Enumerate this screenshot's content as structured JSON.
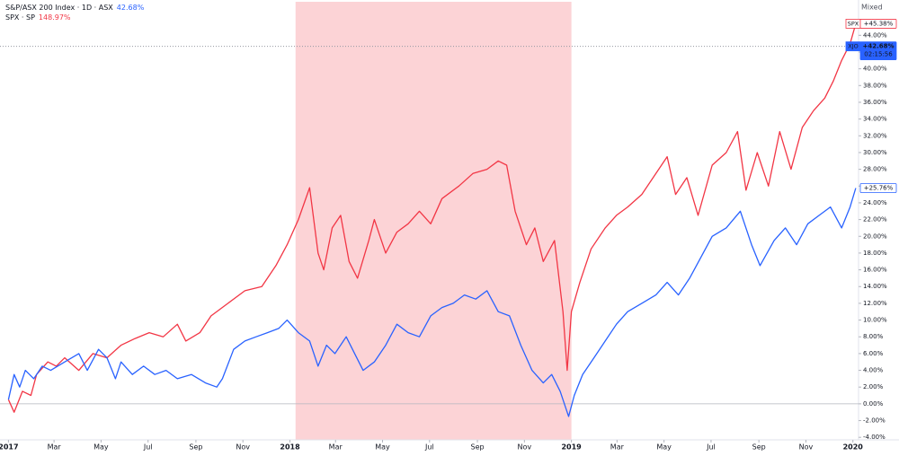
{
  "chart_data": {
    "type": "line",
    "y_axis_label": "Mixed",
    "xlim": [
      2016.97,
      2020.02
    ],
    "ylim": [
      -4.3,
      48
    ],
    "highlight": [
      2018.02,
      2019.0
    ],
    "highlight_color": "rgba(242,54,69,0.22)",
    "grid": false,
    "xticks": [
      {
        "value": 2017.0,
        "label": "2017"
      },
      {
        "value": 2017.162,
        "label": "Mar"
      },
      {
        "value": 2017.329,
        "label": "May"
      },
      {
        "value": 2017.496,
        "label": "Jul"
      },
      {
        "value": 2017.666,
        "label": "Sep"
      },
      {
        "value": 2017.833,
        "label": "Nov"
      },
      {
        "value": 2018.0,
        "label": "2018"
      },
      {
        "value": 2018.162,
        "label": "Mar"
      },
      {
        "value": 2018.329,
        "label": "May"
      },
      {
        "value": 2018.496,
        "label": "Jul"
      },
      {
        "value": 2018.666,
        "label": "Sep"
      },
      {
        "value": 2018.833,
        "label": "Nov"
      },
      {
        "value": 2019.0,
        "label": "2019"
      },
      {
        "value": 2019.162,
        "label": "Mar"
      },
      {
        "value": 2019.329,
        "label": "May"
      },
      {
        "value": 2019.496,
        "label": "Jul"
      },
      {
        "value": 2019.666,
        "label": "Sep"
      },
      {
        "value": 2019.833,
        "label": "Nov"
      },
      {
        "value": 2020.0,
        "label": "2020"
      }
    ],
    "yticks": [
      {
        "value": -4,
        "label": "-4.00%"
      },
      {
        "value": -2,
        "label": "-2.00%"
      },
      {
        "value": 0,
        "label": "0.00%"
      },
      {
        "value": 2,
        "label": "2.00%"
      },
      {
        "value": 4,
        "label": "4.00%"
      },
      {
        "value": 6,
        "label": "6.00%"
      },
      {
        "value": 8,
        "label": "8.00%"
      },
      {
        "value": 10,
        "label": "10.00%"
      },
      {
        "value": 12,
        "label": "12.00%"
      },
      {
        "value": 14,
        "label": "14.00%"
      },
      {
        "value": 16,
        "label": "16.00%"
      },
      {
        "value": 18,
        "label": "18.00%"
      },
      {
        "value": 20,
        "label": "20.00%"
      },
      {
        "value": 22,
        "label": "22.00%"
      },
      {
        "value": 24,
        "label": "24.00%"
      },
      {
        "value": 26,
        "label": "26.00%"
      },
      {
        "value": 28,
        "label": "28.00%"
      },
      {
        "value": 30,
        "label": "30.00%"
      },
      {
        "value": 32,
        "label": "32.00%"
      },
      {
        "value": 34,
        "label": "34.00%"
      },
      {
        "value": 36,
        "label": "36.00%"
      },
      {
        "value": 38,
        "label": "38.00%"
      },
      {
        "value": 40,
        "label": "40.00%"
      },
      {
        "value": 42,
        "label": "42.00%"
      },
      {
        "value": 44,
        "label": "44.00%"
      }
    ],
    "series": [
      {
        "name": "S&P/ASX 200 Index · 1D · ASX",
        "color": "#2962ff",
        "legend_value": 42.68,
        "legend_value_label": "42.68%",
        "x": [
          2017.0,
          2017.02,
          2017.04,
          2017.06,
          2017.09,
          2017.12,
          2017.15,
          2017.2,
          2017.25,
          2017.28,
          2017.32,
          2017.35,
          2017.38,
          2017.4,
          2017.44,
          2017.48,
          2017.52,
          2017.56,
          2017.6,
          2017.65,
          2017.7,
          2017.74,
          2017.76,
          2017.8,
          2017.84,
          2017.88,
          2017.92,
          2017.96,
          2017.99,
          2018.03,
          2018.07,
          2018.1,
          2018.13,
          2018.16,
          2018.2,
          2018.23,
          2018.26,
          2018.3,
          2018.34,
          2018.38,
          2018.42,
          2018.46,
          2018.5,
          2018.54,
          2018.58,
          2018.62,
          2018.66,
          2018.7,
          2018.74,
          2018.78,
          2018.82,
          2018.86,
          2018.9,
          2018.93,
          2018.96,
          2018.99,
          2019.01,
          2019.04,
          2019.08,
          2019.12,
          2019.16,
          2019.2,
          2019.25,
          2019.3,
          2019.34,
          2019.38,
          2019.42,
          2019.46,
          2019.5,
          2019.55,
          2019.6,
          2019.64,
          2019.67,
          2019.72,
          2019.76,
          2019.8,
          2019.84,
          2019.88,
          2019.92,
          2019.96,
          2019.99,
          2020.01
        ],
        "values": [
          0.5,
          3.5,
          2,
          4,
          3,
          4.5,
          4,
          5,
          6,
          4,
          6.5,
          5.5,
          3,
          5,
          3.5,
          4.5,
          3.5,
          4,
          3,
          3.5,
          2.5,
          2,
          3,
          6.5,
          7.5,
          8,
          8.5,
          9,
          10,
          8.5,
          7.5,
          4.5,
          7,
          6,
          8,
          6,
          4,
          5,
          7,
          9.5,
          8.5,
          8,
          10.5,
          11.5,
          12,
          13,
          12.5,
          13.5,
          11,
          10.5,
          7,
          4,
          2.5,
          3.5,
          1.5,
          -1.5,
          1,
          3.5,
          5.5,
          7.5,
          9.5,
          11,
          12,
          13,
          14.5,
          13,
          15,
          17.5,
          20,
          21,
          23,
          19,
          16.5,
          19.5,
          21,
          19,
          21.5,
          22.5,
          23.5,
          21,
          23.5,
          25.76
        ]
      },
      {
        "name": "SPX · SP",
        "color": "#f23645",
        "legend_value": 148.97,
        "legend_value_label": "148.97%",
        "x": [
          2017.0,
          2017.02,
          2017.05,
          2017.08,
          2017.1,
          2017.14,
          2017.17,
          2017.2,
          2017.25,
          2017.3,
          2017.35,
          2017.4,
          2017.45,
          2017.5,
          2017.55,
          2017.6,
          2017.63,
          2017.68,
          2017.72,
          2017.78,
          2017.84,
          2017.9,
          2017.95,
          2017.99,
          2018.03,
          2018.07,
          2018.1,
          2018.12,
          2018.15,
          2018.18,
          2018.21,
          2018.24,
          2018.28,
          2018.3,
          2018.34,
          2018.38,
          2018.42,
          2018.46,
          2018.5,
          2018.54,
          2018.6,
          2018.65,
          2018.7,
          2018.74,
          2018.77,
          2018.8,
          2018.84,
          2018.87,
          2018.9,
          2018.94,
          2018.97,
          2018.985,
          2019.0,
          2019.03,
          2019.07,
          2019.12,
          2019.16,
          2019.2,
          2019.25,
          2019.3,
          2019.34,
          2019.37,
          2019.41,
          2019.45,
          2019.5,
          2019.55,
          2019.59,
          2019.62,
          2019.66,
          2019.7,
          2019.74,
          2019.78,
          2019.82,
          2019.86,
          2019.9,
          2019.93,
          2019.96,
          2019.99,
          2020.01
        ],
        "values": [
          0.5,
          -1,
          1.5,
          1,
          3.5,
          5,
          4.5,
          5.5,
          4,
          6,
          5.5,
          7,
          7.8,
          8.5,
          8,
          9.5,
          7.5,
          8.5,
          10.5,
          12,
          13.5,
          14,
          16.5,
          19,
          22,
          25.8,
          18,
          16,
          21,
          22.5,
          17,
          15,
          19.5,
          22,
          18,
          20.5,
          21.5,
          23,
          21.5,
          24.5,
          26,
          27.5,
          28,
          29,
          28.5,
          23,
          19,
          21,
          17,
          19.5,
          11,
          4,
          11,
          14.5,
          18.5,
          21,
          22.5,
          23.5,
          25,
          27.5,
          29.5,
          25,
          27,
          22.5,
          28.5,
          30,
          32.5,
          25.5,
          30,
          26,
          32.5,
          28,
          33,
          35,
          36.5,
          38.5,
          41,
          43,
          45.38
        ]
      }
    ],
    "price_labels": [
      {
        "name": "SPX",
        "value": 45.38,
        "label": "+45.38%",
        "color": "#f23645",
        "style": "outline"
      },
      {
        "name": "XJO",
        "value": 42.68,
        "label": "+42.68%",
        "countdown": "02:15:56",
        "color": "#2962ff",
        "style": "filled",
        "line": "dashed"
      },
      {
        "value": 25.76,
        "label": "+25.76%",
        "color": "#2962ff",
        "style": "outline"
      }
    ]
  }
}
